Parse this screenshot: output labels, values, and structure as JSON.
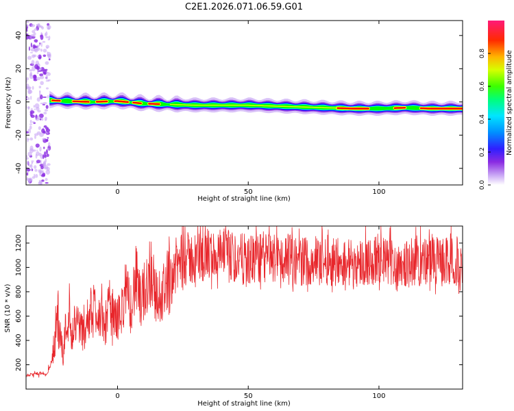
{
  "title": "C2E1.2026.071.06.59.G01",
  "chart_data": [
    {
      "type": "heatmap",
      "panel": "spectrogram",
      "xlabel": "Height of straight line (km)",
      "ylabel": "Frequency (Hz)",
      "xlim": [
        -35,
        132
      ],
      "ylim": [
        -50,
        49
      ],
      "xticks": [
        0,
        50,
        100
      ],
      "yticks": [
        -40,
        -20,
        0,
        20,
        40
      ],
      "ridge": {
        "description": "Doppler frequency of peak power vs height",
        "x": [
          -26,
          -20,
          -10,
          0,
          10,
          20,
          30,
          40,
          50,
          60,
          70,
          80,
          90,
          100,
          110,
          120,
          132
        ],
        "y": [
          1,
          0.5,
          0,
          0.5,
          -1,
          -1.5,
          -2,
          -2,
          -2,
          -2.5,
          -3,
          -3.5,
          -4,
          -4,
          -3.5,
          -4,
          -4
        ]
      },
      "colorbar": {
        "label": "Normalized spectral amplitude",
        "min": 0.0,
        "max": 1.0,
        "ticks": [
          0.0,
          0.2,
          0.4,
          0.6,
          0.8
        ],
        "tick_labels": [
          "0.0",
          "0.2",
          "0.4",
          "0.6",
          "0.8"
        ]
      },
      "colors": [
        "#ffffff",
        "#8a2be2",
        "#0000ff",
        "#00ffff",
        "#00ff00",
        "#ffff00",
        "#ff7f00",
        "#ff0000",
        "#ff1493"
      ]
    },
    {
      "type": "line",
      "panel": "snr",
      "xlabel": "Height of straight line (km)",
      "ylabel": "SNR (10 * v/v)",
      "xlim": [
        -35,
        132
      ],
      "ylim": [
        0,
        1340
      ],
      "xticks": [
        0,
        50,
        100
      ],
      "yticks": [
        200,
        400,
        600,
        800,
        1000,
        1200
      ],
      "series": [
        {
          "name": "SNR",
          "color": "#e8262b",
          "x": [
            -35,
            -30,
            -27,
            -25,
            -23,
            -21,
            -19,
            -17,
            -15,
            -13,
            -11,
            -9,
            -7,
            -5,
            -3,
            -1,
            1,
            3,
            5,
            7,
            9,
            11,
            13,
            15,
            17,
            19,
            21,
            23,
            25,
            30,
            35,
            40,
            45,
            50,
            60,
            70,
            80,
            90,
            100,
            110,
            120,
            132
          ],
          "values": [
            110,
            130,
            120,
            240,
            620,
            300,
            620,
            450,
            560,
            450,
            600,
            700,
            620,
            520,
            680,
            580,
            600,
            800,
            680,
            900,
            700,
            880,
            1000,
            720,
            800,
            900,
            960,
            1020,
            1060,
            1080,
            1100,
            1100,
            1080,
            1060,
            1080,
            1050,
            1060,
            1040,
            1050,
            1040,
            1050,
            1040
          ],
          "envelope": [
            80,
            90,
            100,
            160,
            240,
            150,
            300,
            240,
            320,
            250,
            350,
            420,
            360,
            280,
            380,
            320,
            350,
            460,
            380,
            500,
            420,
            480,
            560,
            420,
            500,
            560,
            620,
            700,
            760,
            780,
            800,
            800,
            790,
            780,
            790,
            780,
            780,
            770,
            780,
            770,
            780,
            770
          ]
        }
      ]
    }
  ]
}
